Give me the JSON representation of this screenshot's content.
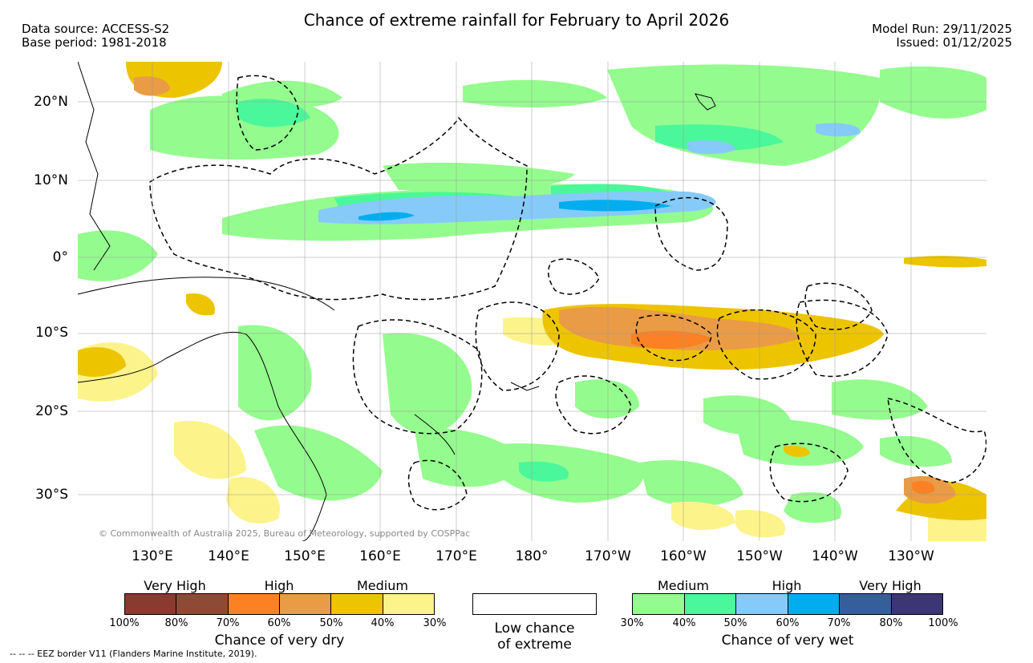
{
  "header": {
    "title": "Chance of extreme rainfall for February to April 2026",
    "data_source": "Data source: ACCESS-S2",
    "base_period": "Base period: 1981-2018",
    "model_run": "Model Run: 29/11/2025",
    "issued": "Issued: 01/12/2025"
  },
  "map": {
    "lat_labels": [
      "20°N",
      "10°N",
      "0°",
      "10°S",
      "20°S",
      "30°S"
    ],
    "lon_labels": [
      "130°E",
      "140°E",
      "150°E",
      "160°E",
      "170°E",
      "180°",
      "170°W",
      "160°W",
      "150°W",
      "140°W",
      "130°W"
    ],
    "copyright": "© Commonwealth of Australia 2025, Bureau of Meteorology, supported by COSPPac"
  },
  "legend": {
    "dry": {
      "groups": [
        "Very High",
        "High",
        "Medium"
      ],
      "ticks": [
        "100%",
        "80%",
        "70%",
        "60%",
        "50%",
        "40%",
        "30%"
      ],
      "colors": [
        "#8b3a2f",
        "#8e4a35",
        "#fb8124",
        "#ea9b45",
        "#edc400",
        "#fdf38b"
      ],
      "caption": "Chance of very dry"
    },
    "low": {
      "caption_line1": "Low chance",
      "caption_line2": "of extreme"
    },
    "wet": {
      "groups": [
        "Medium",
        "High",
        "Very High"
      ],
      "ticks": [
        "30%",
        "40%",
        "50%",
        "60%",
        "70%",
        "80%",
        "100%"
      ],
      "colors": [
        "#94fc8e",
        "#4af79a",
        "#86caf9",
        "#00adee",
        "#355f9b",
        "#3c3676"
      ],
      "caption": "Chance of very wet"
    }
  },
  "footer": {
    "eez_note": "-- -- -- EEZ border V11 (Flanders Marine Institute, 2019)."
  },
  "colors": {
    "light_green": "#94fc8e",
    "mid_green": "#4af79a",
    "light_blue": "#86caf9",
    "blue": "#00adee",
    "yellow": "#edc400",
    "pale_yellow": "#fdf38b",
    "orange_tan": "#ea9b45",
    "orange": "#fb8124"
  }
}
